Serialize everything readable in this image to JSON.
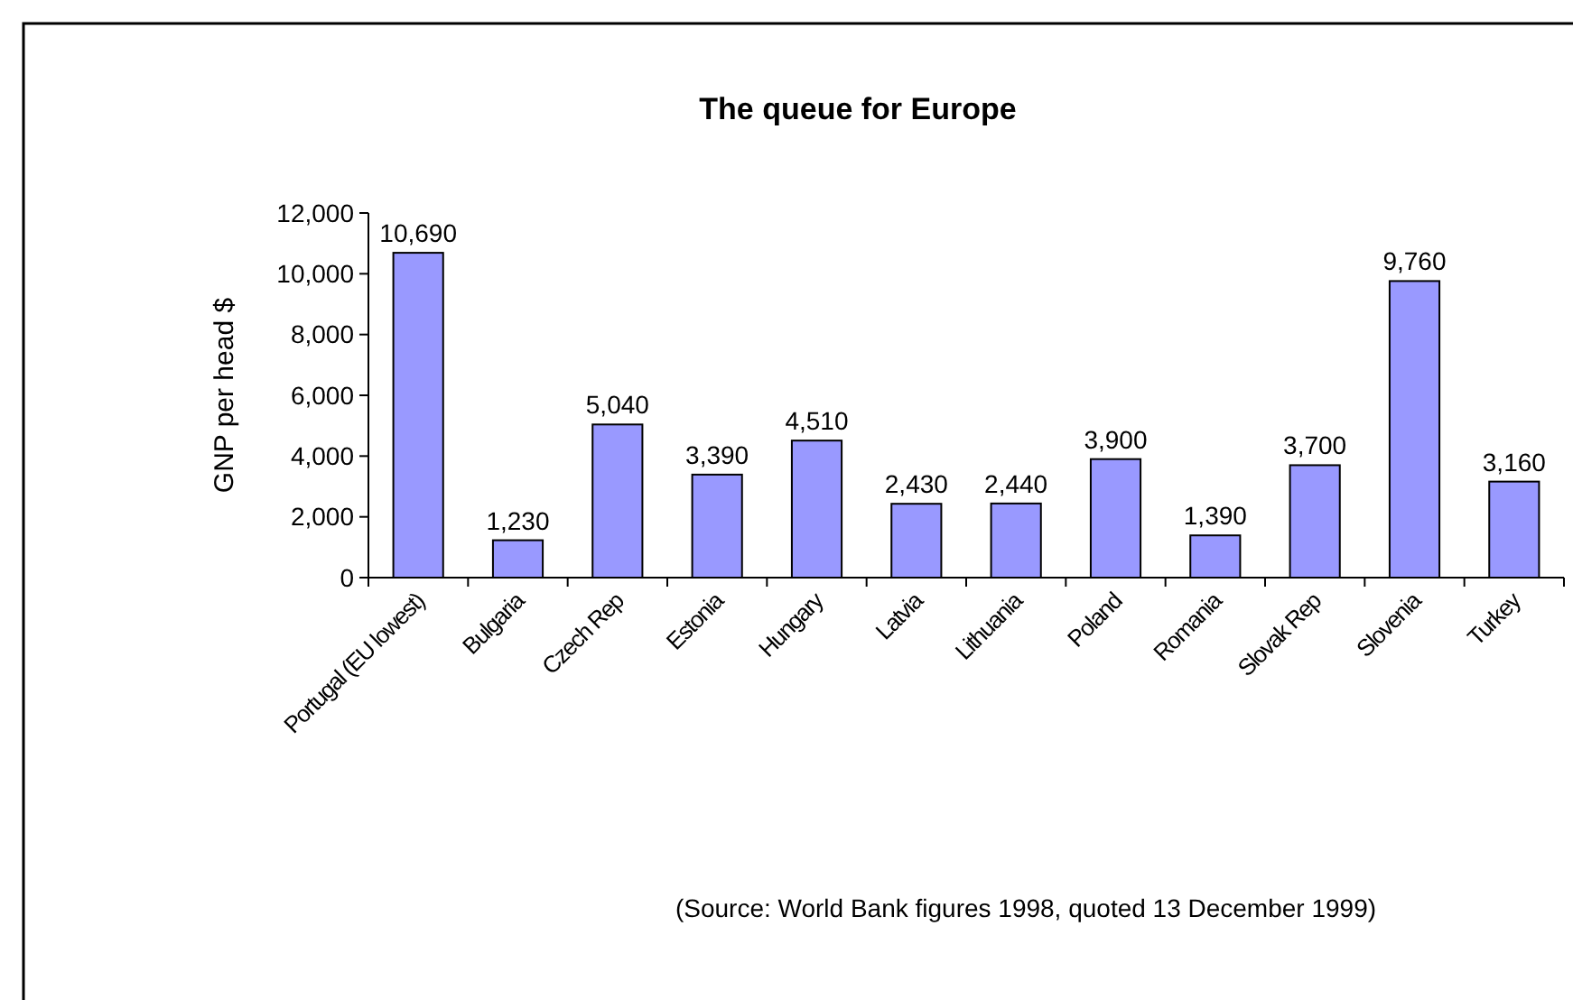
{
  "chart_data": {
    "type": "bar",
    "title": "The queue for Europe",
    "ylabel": "GNP per head $",
    "categories": [
      "Portugal (EU lowest)",
      "Bulgaria",
      "Czech Rep",
      "Estonia",
      "Hungary",
      "Latvia",
      "Lithuania",
      "Poland",
      "Romania",
      "Slovak Rep",
      "Slovenia",
      "Turkey"
    ],
    "values": [
      10690,
      1230,
      5040,
      3390,
      4510,
      2430,
      2440,
      3900,
      1390,
      3700,
      9760,
      3160
    ],
    "value_labels": [
      "10,690",
      "1,230",
      "5,040",
      "3,390",
      "4,510",
      "2,430",
      "2,440",
      "3,900",
      "1,390",
      "3,700",
      "9,760",
      "3,160"
    ],
    "color": "#9999ff",
    "grid": false,
    "ylim": [
      0,
      12000
    ],
    "yticks": [
      0,
      {
        "value": 2000,
        "label": "2,000"
      },
      {
        "value": 4000,
        "label": "4,000"
      },
      {
        "value": 6000,
        "label": "6,000"
      },
      {
        "value": 8000,
        "label": "8,000"
      },
      {
        "value": 10000,
        "label": "10,000"
      },
      {
        "value": 12000,
        "label": "12,000"
      }
    ],
    "annotations": [
      "(Source: World Bank figures 1998, quoted 13 December 1999)"
    ]
  }
}
